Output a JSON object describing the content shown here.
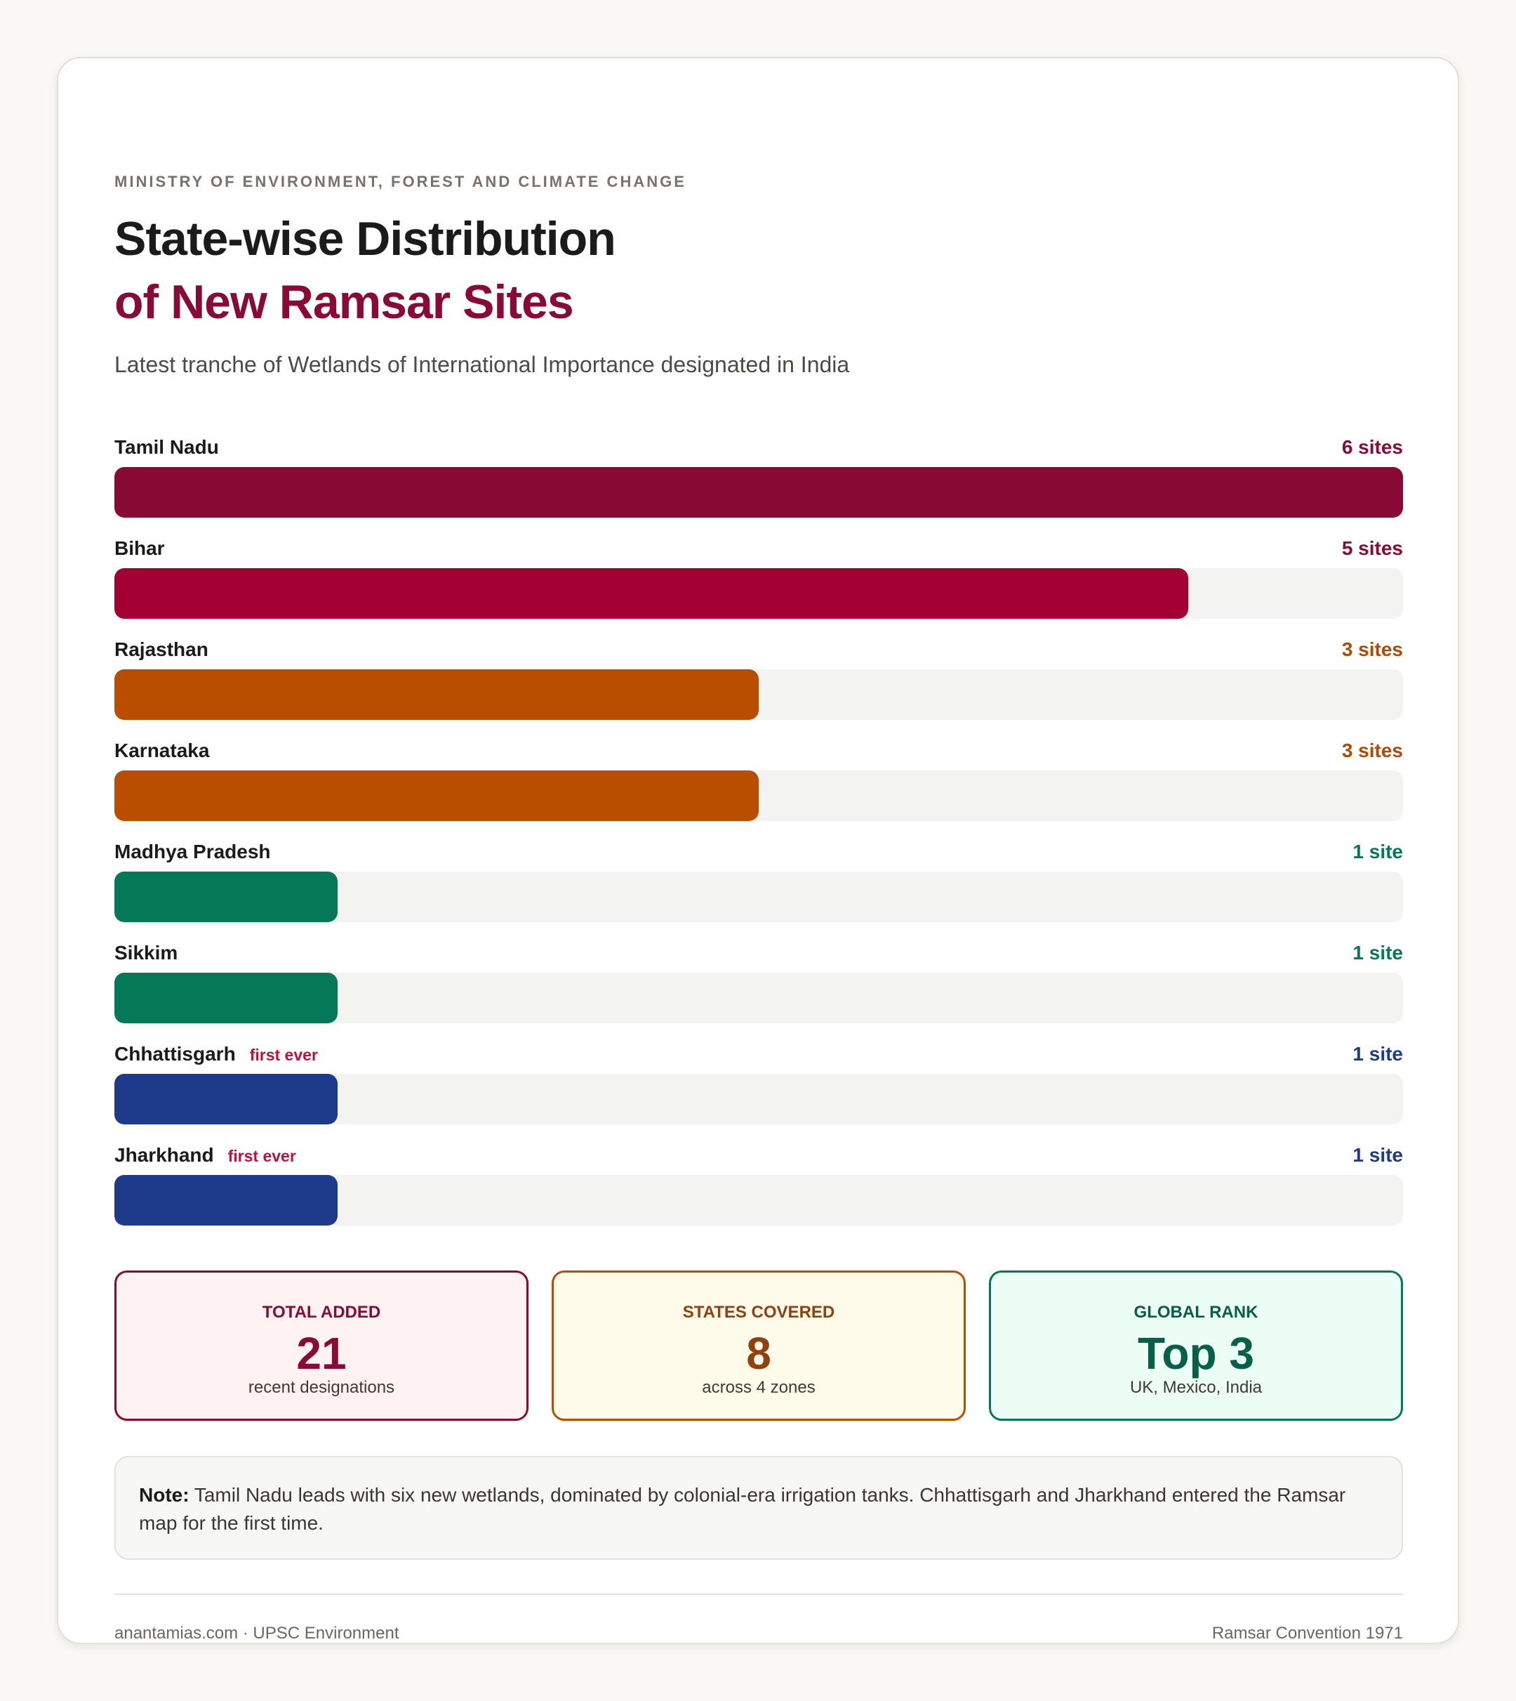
{
  "header": {
    "ministry": "MINISTRY OF ENVIRONMENT, FOREST AND CLIMATE CHANGE",
    "title_line1": "State-wise Distribution",
    "title_line2": "of New Ramsar Sites",
    "subtitle": "Latest tranche of Wetlands of International Importance designated in India"
  },
  "chart_data": {
    "type": "bar",
    "orientation": "horizontal",
    "categories": [
      "Tamil Nadu",
      "Bihar",
      "Rajasthan",
      "Karnataka",
      "Madhya Pradesh",
      "Sikkim",
      "Chhattisgarh",
      "Jharkhand"
    ],
    "values": [
      6,
      5,
      3,
      3,
      1,
      1,
      1,
      1
    ],
    "xlim": [
      0,
      6
    ],
    "value_labels": [
      "6 sites",
      "5 sites",
      "3 sites",
      "3 sites",
      "1 site",
      "1 site",
      "1 site",
      "1 site"
    ],
    "tags": [
      "",
      "",
      "",
      "",
      "",
      "",
      "first ever",
      "first ever"
    ],
    "colors": [
      "#8a0a36",
      "#a50034",
      "#ba4e00",
      "#ba4e00",
      "#047857",
      "#047857",
      "#1e3a8a",
      "#1e3a8a"
    ],
    "value_colors": [
      "#8a0a36",
      "#8a0a36",
      "#b24a07",
      "#b24a07",
      "#047857",
      "#047857",
      "#1e3a8a",
      "#1e3a8a"
    ],
    "track_color": "#f3f3f1",
    "grid": false,
    "legend": "none"
  },
  "stats": [
    {
      "label": "TOTAL ADDED",
      "value": "21",
      "sub": "recent designations",
      "color": "#8a0a36",
      "bg": "#fef2f3",
      "border": "#8a0a36"
    },
    {
      "label": "STATES COVERED",
      "value": "8",
      "sub": "across 4 zones",
      "color": "#92400e",
      "bg": "#fefbeb",
      "border": "#ba4e00"
    },
    {
      "label": "GLOBAL RANK",
      "value": "Top 3",
      "sub": "UK, Mexico, India",
      "color": "#065f46",
      "bg": "#ebfdf5",
      "border": "#047857"
    }
  ],
  "note": {
    "label": "Note:",
    "text": " Tamil Nadu leads with six new wetlands, dominated by colonial-era irrigation tanks. Chhattisgarh and Jharkhand entered the Ramsar map for the first time."
  },
  "footer": {
    "left": "anantamias.com · UPSC Environment",
    "right": "Ramsar Convention 1971"
  }
}
